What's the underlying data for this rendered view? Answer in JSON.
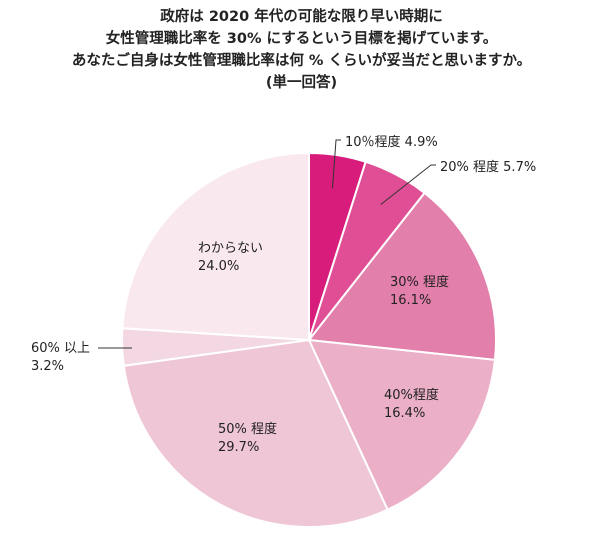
{
  "title_lines": [
    "政府は 2020 年代の可能な限り早い時期に",
    "女性管理職比率を 30% にするという目標を掲げています。",
    "あなたご自身は女性管理職比率は何 % くらいが妥当だと思いますか。",
    "(単一回答)"
  ],
  "chart_data": {
    "type": "pie",
    "start": "12 o'clock",
    "direction": "clockwise",
    "slices": [
      {
        "name": "10％程度",
        "value_text": "4.9%",
        "value": 4.9,
        "color": "#d81c7c"
      },
      {
        "name": "20% 程度",
        "value_text": "5.7%",
        "value": 5.7,
        "color": "#e04f96"
      },
      {
        "name": "30% 程度",
        "value_text": "16.1%",
        "value": 16.1,
        "color": "#e37fab"
      },
      {
        "name": "40%程度",
        "value_text": "16.4%",
        "value": 16.4,
        "color": "#ebafc7"
      },
      {
        "name": "50% 程度",
        "value_text": "29.7%",
        "value": 29.7,
        "color": "#efc6d6"
      },
      {
        "name": "60% 以上",
        "value_text": "3.2%",
        "value": 3.2,
        "color": "#f3d8e3"
      },
      {
        "name": "わからない",
        "value_text": "24.0%",
        "value": 24.0,
        "color": "#f9e9ef"
      }
    ]
  }
}
